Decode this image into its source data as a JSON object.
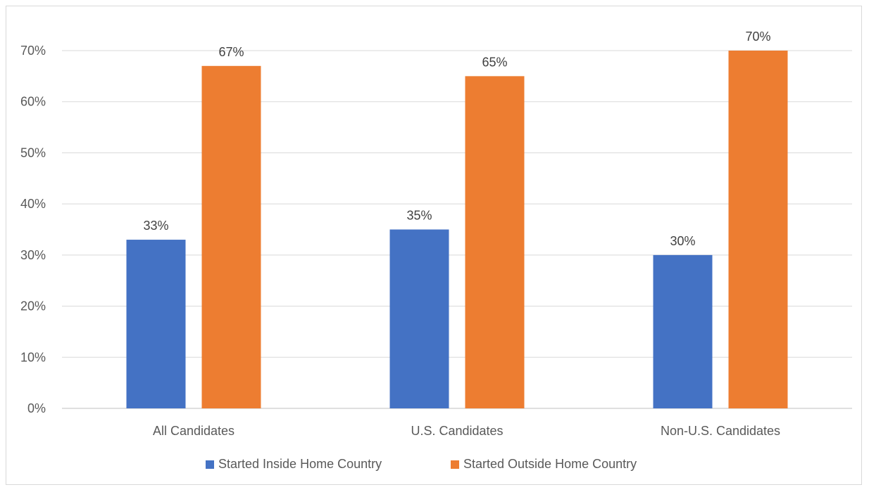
{
  "chart_data": {
    "type": "bar",
    "title": "",
    "xlabel": "",
    "ylabel": "",
    "categories": [
      "All Candidates",
      "U.S. Candidates",
      "Non-U.S. Candidates"
    ],
    "series": [
      {
        "name": "Started Inside Home Country",
        "color": "#4472c4",
        "values": [
          33,
          35,
          30
        ],
        "labels": [
          "33%",
          "35%",
          "30%"
        ]
      },
      {
        "name": "Started Outside Home Country",
        "color": "#ed7d31",
        "values": [
          67,
          65,
          70
        ],
        "labels": [
          "67%",
          "65%",
          "70%"
        ]
      }
    ],
    "ylim": [
      0,
      70
    ],
    "yticks": [
      0,
      10,
      20,
      30,
      40,
      50,
      60,
      70
    ],
    "ytick_labels": [
      "0%",
      "10%",
      "20%",
      "30%",
      "40%",
      "50%",
      "60%",
      "70%"
    ],
    "grid": true,
    "legend_position": "bottom"
  }
}
